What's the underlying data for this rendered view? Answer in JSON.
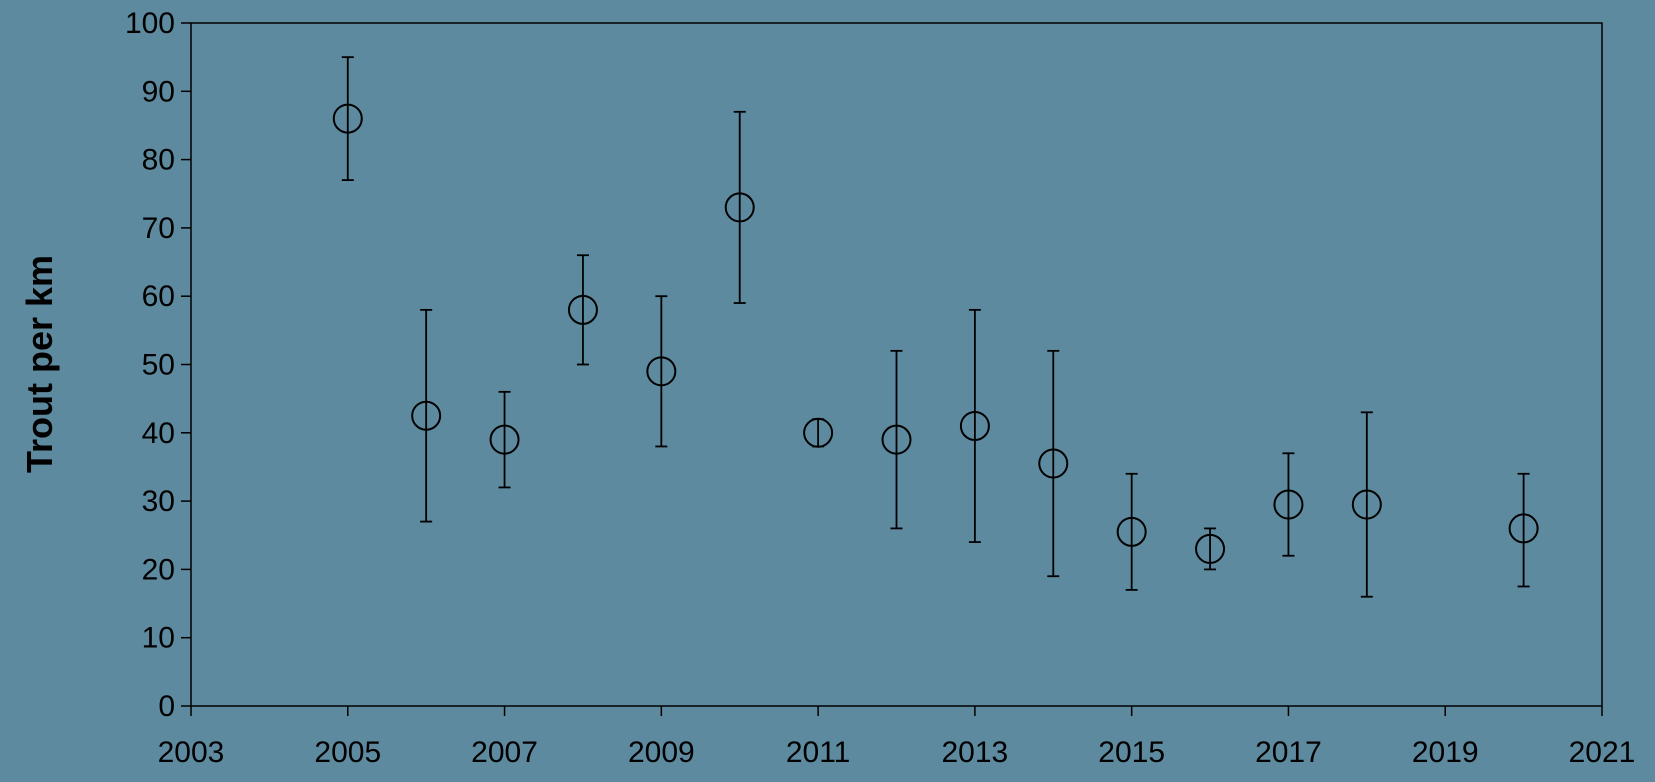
{
  "background_color": "#5e8a9f",
  "chart_data": {
    "type": "scatter",
    "title": "",
    "xlabel": "",
    "ylabel": "Trout per km",
    "xlim": [
      2003,
      2021
    ],
    "ylim": [
      0,
      100
    ],
    "x_ticks": [
      2003,
      2005,
      2007,
      2009,
      2011,
      2013,
      2015,
      2017,
      2019,
      2021
    ],
    "y_ticks": [
      0,
      10,
      20,
      30,
      40,
      50,
      60,
      70,
      80,
      90,
      100
    ],
    "grid": false,
    "legend": "none",
    "marker": "open-circle",
    "marker_color": "#000000",
    "series": [
      {
        "points": [
          {
            "x": 2005,
            "y": 86,
            "low": 77,
            "high": 95
          },
          {
            "x": 2006,
            "y": 42.5,
            "low": 27,
            "high": 58
          },
          {
            "x": 2007,
            "y": 39,
            "low": 32,
            "high": 46
          },
          {
            "x": 2008,
            "y": 58,
            "low": 50,
            "high": 66
          },
          {
            "x": 2009,
            "y": 49,
            "low": 38,
            "high": 60
          },
          {
            "x": 2010,
            "y": 73,
            "low": 59,
            "high": 87
          },
          {
            "x": 2011,
            "y": 40,
            "low": 38,
            "high": 42
          },
          {
            "x": 2012,
            "y": 39,
            "low": 26,
            "high": 52
          },
          {
            "x": 2013,
            "y": 41,
            "low": 24,
            "high": 58
          },
          {
            "x": 2014,
            "y": 35.5,
            "low": 19,
            "high": 52
          },
          {
            "x": 2015,
            "y": 25.5,
            "low": 17,
            "high": 34
          },
          {
            "x": 2016,
            "y": 23,
            "low": 20,
            "high": 26
          },
          {
            "x": 2017,
            "y": 29.5,
            "low": 22,
            "high": 37
          },
          {
            "x": 2018,
            "y": 29.5,
            "low": 16,
            "high": 43
          },
          {
            "x": 2020,
            "y": 26,
            "low": 17.5,
            "high": 34
          }
        ]
      }
    ]
  }
}
